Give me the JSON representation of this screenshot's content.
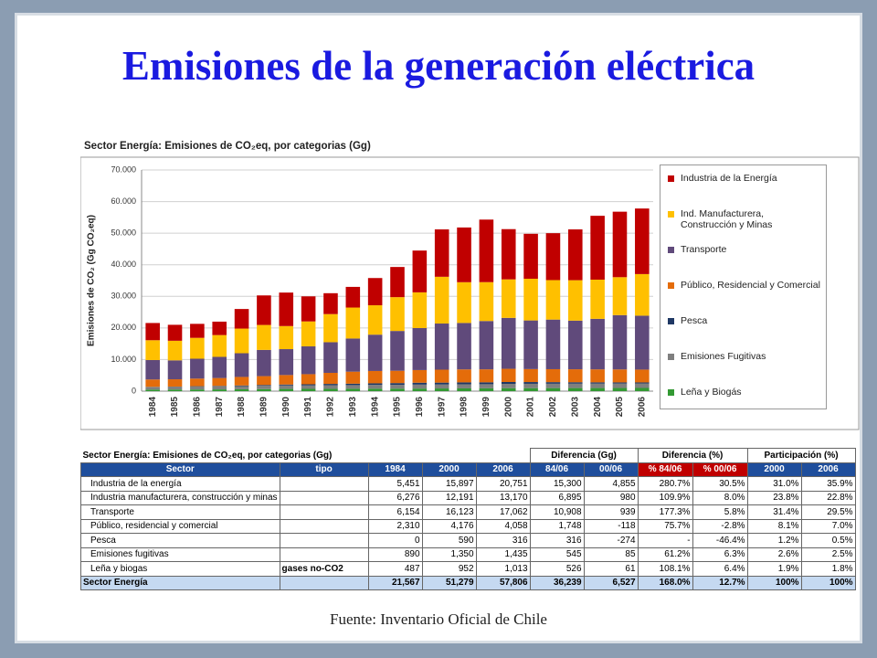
{
  "slide_title": "Emisiones de la generación eléctrica",
  "chart_data": {
    "type": "bar",
    "stacked": true,
    "title": "Sector Energía: Emisiones de CO₂eq, por categorias (Gg)",
    "y_label": "Emisiones de CO₂ (Gg CO₂eq)",
    "categories": [
      "1984",
      "1985",
      "1986",
      "1987",
      "1988",
      "1989",
      "1990",
      "1991",
      "1992",
      "1993",
      "1994",
      "1995",
      "1996",
      "1997",
      "1998",
      "1999",
      "2000",
      "2001",
      "2002",
      "2003",
      "2004",
      "2005",
      "2006"
    ],
    "series": [
      {
        "name": "Industria de la Energía",
        "color": "#c00000",
        "values": [
          5451,
          5050,
          4430,
          4250,
          6200,
          9350,
          10600,
          7930,
          6610,
          6540,
          8620,
          9550,
          13230,
          15000,
          17320,
          19800,
          15897,
          14220,
          14850,
          16080,
          20210,
          20730,
          20751
        ]
      },
      {
        "name": "Ind. Manufacturera, Construcción y Minas",
        "color": "#ffc000",
        "values": [
          6276,
          6200,
          6600,
          6900,
          7800,
          7900,
          7300,
          7900,
          8900,
          9800,
          9300,
          10700,
          11300,
          14800,
          12900,
          12300,
          12191,
          13200,
          12500,
          12800,
          12400,
          12000,
          13170
        ]
      },
      {
        "name": "Transporte",
        "color": "#604a7b",
        "values": [
          6154,
          6000,
          6300,
          6700,
          7500,
          8300,
          8200,
          8800,
          9700,
          10500,
          11500,
          12600,
          13300,
          14600,
          14700,
          15300,
          16123,
          15400,
          15700,
          15400,
          16000,
          17200,
          17062
        ]
      },
      {
        "name": "Público, Residencial y Comercial",
        "color": "#e46c0a",
        "values": [
          2310,
          2300,
          2400,
          2500,
          2700,
          2800,
          3000,
          3200,
          3500,
          3800,
          3900,
          3900,
          4000,
          4100,
          4100,
          4100,
          4176,
          4100,
          4100,
          4100,
          4100,
          4100,
          4058
        ]
      },
      {
        "name": "Pesca",
        "color": "#1f3864",
        "values": [
          0,
          50,
          100,
          150,
          200,
          250,
          300,
          350,
          400,
          450,
          500,
          550,
          600,
          600,
          600,
          600,
          590,
          550,
          500,
          450,
          400,
          350,
          316
        ]
      },
      {
        "name": "Emisiones Fugitivas",
        "color": "#7f7f7f",
        "values": [
          890,
          900,
          950,
          950,
          1000,
          1050,
          1100,
          1100,
          1150,
          1150,
          1200,
          1200,
          1250,
          1250,
          1300,
          1300,
          1350,
          1370,
          1380,
          1390,
          1400,
          1420,
          1435
        ]
      },
      {
        "name": "Leña y Biogás",
        "color": "#339933",
        "values": [
          487,
          500,
          520,
          550,
          600,
          650,
          700,
          720,
          740,
          760,
          780,
          800,
          820,
          850,
          880,
          900,
          952,
          960,
          970,
          980,
          990,
          1000,
          1013
        ]
      }
    ],
    "ylim": [
      0,
      70000
    ],
    "yticks": [
      0,
      {
        "value": 10000,
        "label": "10.000"
      },
      {
        "value": 20000,
        "label": "20.000"
      },
      {
        "value": 30000,
        "label": "30.000"
      },
      {
        "value": 40000,
        "label": "40.000"
      },
      {
        "value": 50000,
        "label": "50.000"
      },
      {
        "value": 60000,
        "label": "60.000"
      },
      {
        "value": 70000,
        "label": "70.000"
      }
    ],
    "grid": true,
    "legend": "right"
  },
  "table": {
    "title": "Sector Energía: Emisiones de CO₂eq, por categorias (Gg)",
    "groups": [
      "Diferencia (Gg)",
      "Diferencia (%)",
      "Participación (%)"
    ],
    "columns": [
      "Sector",
      "tipo",
      "1984",
      "2000",
      "2006",
      "84/06",
      "00/06",
      "% 84/06",
      "% 00/06",
      "2000",
      "2006"
    ],
    "rows": [
      [
        "Industria de la energía",
        null,
        "5,451",
        "15,897",
        "20,751",
        "15,300",
        "4,855",
        "280.7%",
        "30.5%",
        "31.0%",
        "35.9%"
      ],
      [
        "Industria manufacturera, construcción y minas",
        null,
        "6,276",
        "12,191",
        "13,170",
        "6,895",
        "980",
        "109.9%",
        "8.0%",
        "23.8%",
        "22.8%"
      ],
      [
        "Transporte",
        null,
        "6,154",
        "16,123",
        "17,062",
        "10,908",
        "939",
        "177.3%",
        "5.8%",
        "31.4%",
        "29.5%"
      ],
      [
        "Público, residencial y comercial",
        null,
        "2,310",
        "4,176",
        "4,058",
        "1,748",
        "-118",
        "75.7%",
        "-2.8%",
        "8.1%",
        "7.0%"
      ],
      [
        "Pesca",
        null,
        "0",
        "590",
        "316",
        "316",
        "-274",
        "-",
        "-46.4%",
        "1.2%",
        "0.5%"
      ],
      [
        "Emisiones fugitivas",
        null,
        "890",
        "1,350",
        "1,435",
        "545",
        "85",
        "61.2%",
        "6.3%",
        "2.6%",
        "2.5%"
      ],
      [
        "Leña y biogas",
        "gases no-CO2",
        "487",
        "952",
        "1,013",
        "526",
        "61",
        "108.1%",
        "6.4%",
        "1.9%",
        "1.8%"
      ],
      [
        "Sector Energía",
        null,
        "21,567",
        "51,279",
        "57,806",
        "36,239",
        "6,527",
        "168.0%",
        "12.7%",
        "100%",
        "100%"
      ]
    ]
  },
  "source": "Fuente: Inventario Oficial de Chile"
}
